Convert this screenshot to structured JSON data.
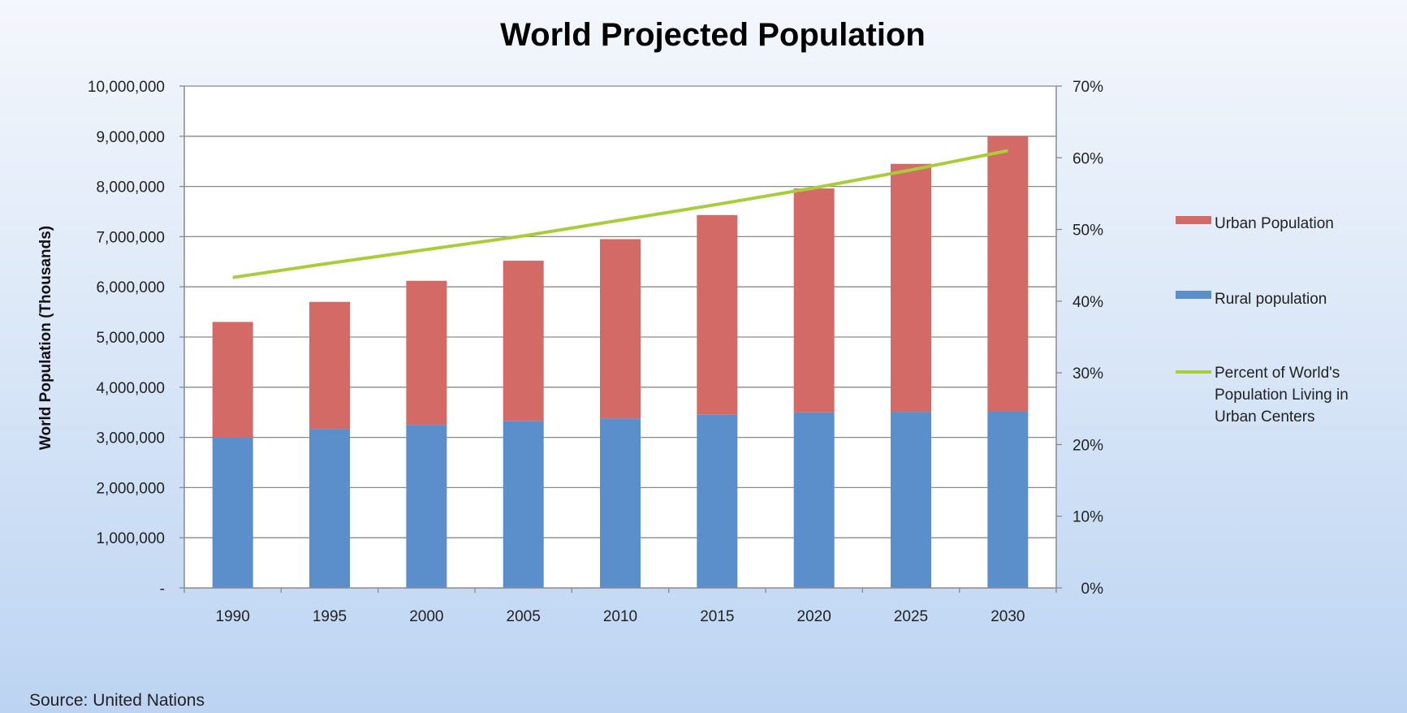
{
  "chart_data": {
    "type": "bar",
    "stacked": true,
    "title": "World Projected Population",
    "ylabel": "World Population (Thousands)",
    "y2label": "",
    "categories": [
      "1990",
      "1995",
      "2000",
      "2005",
      "2010",
      "2015",
      "2020",
      "2025",
      "2030"
    ],
    "ylim": [
      0,
      10000000
    ],
    "y_ticks": [
      "-",
      "1,000,000",
      "2,000,000",
      "3,000,000",
      "4,000,000",
      "5,000,000",
      "6,000,000",
      "7,000,000",
      "8,000,000",
      "9,000,000",
      "10,000,000"
    ],
    "y2lim": [
      0,
      70
    ],
    "y2_ticks": [
      "0%",
      "10%",
      "20%",
      "30%",
      "40%",
      "50%",
      "60%",
      "70%"
    ],
    "grid": true,
    "legend_position": "right",
    "series": [
      {
        "name": "Rural population",
        "kind": "bar",
        "axis": "left",
        "color": "#5b8fcb",
        "values": [
          3000000,
          3170000,
          3250000,
          3330000,
          3380000,
          3450000,
          3500000,
          3510000,
          3520000
        ]
      },
      {
        "name": "Urban Population",
        "kind": "bar",
        "axis": "left",
        "color": "#d46a65",
        "values": [
          2300000,
          2530000,
          2870000,
          3190000,
          3570000,
          3980000,
          4460000,
          4940000,
          5480000
        ]
      },
      {
        "name": "Percent of World's Population Living in Urban Centers",
        "kind": "line",
        "axis": "right",
        "color": "#a9cc3a",
        "values": [
          43.3,
          45.3,
          47.2,
          49.1,
          51.3,
          53.5,
          55.8,
          58.3,
          61.0
        ]
      }
    ],
    "source": "Source: United Nations"
  },
  "legend": {
    "urban": "Urban Population",
    "rural": "Rural population",
    "percent_lines": [
      "Percent of World's",
      "Population Living in",
      "Urban Centers"
    ]
  }
}
